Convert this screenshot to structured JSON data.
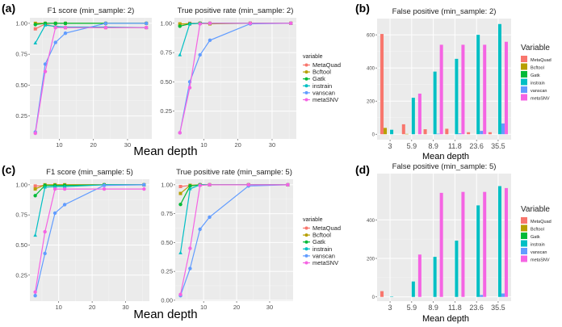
{
  "colors": {
    "MetaQuad": "#F8766D",
    "Bcftool": "#B79F00",
    "Gatk": "#00BA38",
    "instrain": "#00BFC4",
    "vanscan": "#619CFF",
    "metaSNV": "#F564E3"
  },
  "variables": [
    "MetaQuad",
    "Bcftool",
    "Gatk",
    "instrain",
    "vanscan",
    "metaSNV"
  ],
  "line_legend_title": "variable",
  "bar_legend_title": "Variable",
  "xlabel": "Mean depth",
  "panel_labels": [
    "(a)",
    "(b)",
    "(c)",
    "(d)"
  ],
  "chart_data": [
    {
      "type": "line",
      "title": "F1 score (min_sample: 2)",
      "x": [
        3,
        5.9,
        8.9,
        11.8,
        23.6,
        35.5
      ],
      "xlim": [
        1.4,
        37.1
      ],
      "xticks": [
        10,
        20,
        30
      ],
      "ylim": [
        0.065,
        1.045
      ],
      "yticks": [
        0.25,
        0.5,
        0.75,
        1.0
      ],
      "series": [
        {
          "name": "MetaQuad",
          "values": [
            0.955,
            0.995,
            0.97,
            0.965,
            0.965,
            0.965
          ]
        },
        {
          "name": "Bcftool",
          "values": [
            1.0,
            1.0,
            1.0,
            1.0,
            1.0,
            1.0
          ]
        },
        {
          "name": "Gatk",
          "values": [
            0.99,
            1.0,
            1.0,
            1.0,
            1.0,
            1.0
          ]
        },
        {
          "name": "instrain",
          "values": [
            0.84,
            0.985,
            0.975,
            0.97,
            0.97,
            0.965
          ]
        },
        {
          "name": "vanscan",
          "values": [
            0.12,
            0.67,
            0.845,
            0.92,
            1.0,
            1.0
          ]
        },
        {
          "name": "metaSNV",
          "values": [
            0.11,
            0.61,
            0.965,
            0.965,
            0.965,
            0.965
          ]
        }
      ]
    },
    {
      "type": "line",
      "title": "True positive rate (min_sample: 2)",
      "x": [
        3,
        5.9,
        8.9,
        11.8,
        23.6,
        35.5
      ],
      "xlim": [
        1.4,
        37.1
      ],
      "xticks": [
        10,
        20,
        30
      ],
      "ylim": [
        0.013,
        1.047
      ],
      "yticks": [
        0.25,
        0.5,
        0.75,
        1.0
      ],
      "series": [
        {
          "name": "MetaQuad",
          "values": [
            0.99,
            1.0,
            1.0,
            1.0,
            1.0,
            1.0
          ]
        },
        {
          "name": "Bcftool",
          "values": [
            0.995,
            0.995,
            1.0,
            0.995,
            1.0,
            1.0
          ]
        },
        {
          "name": "Gatk",
          "values": [
            0.975,
            0.995,
            1.0,
            1.0,
            1.0,
            1.0
          ]
        },
        {
          "name": "instrain",
          "values": [
            0.73,
            0.995,
            1.0,
            1.0,
            1.0,
            1.0
          ]
        },
        {
          "name": "vanscan",
          "values": [
            0.065,
            0.5,
            0.73,
            0.855,
            0.995,
            1.0
          ]
        },
        {
          "name": "metaSNV",
          "values": [
            0.065,
            0.45,
            0.995,
            1.0,
            1.0,
            1.0
          ]
        }
      ]
    },
    {
      "type": "line",
      "title": "F1 score (min_sample: 5)",
      "x": [
        3,
        5.9,
        8.9,
        11.8,
        23.6,
        35.5
      ],
      "xlim": [
        1.4,
        37.1
      ],
      "xticks": [
        10,
        20,
        30
      ],
      "ylim": [
        0.034,
        1.046
      ],
      "yticks": [
        0.25,
        0.5,
        0.75,
        1.0
      ],
      "series": [
        {
          "name": "MetaQuad",
          "values": [
            0.99,
            0.995,
            1.0,
            1.0,
            1.0,
            1.0
          ]
        },
        {
          "name": "Bcftool",
          "values": [
            0.965,
            1.0,
            1.0,
            1.0,
            1.0,
            1.0
          ]
        },
        {
          "name": "Gatk",
          "values": [
            0.91,
            0.995,
            0.995,
            0.995,
            1.0,
            1.0
          ]
        },
        {
          "name": "instrain",
          "values": [
            0.58,
            0.98,
            0.985,
            0.985,
            1.0,
            1.0
          ]
        },
        {
          "name": "vanscan",
          "values": [
            0.08,
            0.43,
            0.765,
            0.835,
            0.995,
            1.0
          ]
        },
        {
          "name": "metaSNV",
          "values": [
            0.11,
            0.61,
            0.965,
            0.965,
            0.965,
            0.965
          ]
        }
      ]
    },
    {
      "type": "line",
      "title": "True positive rate (min_sample: 5)",
      "x": [
        3,
        5.9,
        8.9,
        11.8,
        23.6,
        35.5
      ],
      "xlim": [
        1.4,
        37.1
      ],
      "xticks": [
        10,
        20,
        30
      ],
      "ylim": [
        -0.008,
        1.048
      ],
      "yticks": [
        0.0,
        0.25,
        0.5,
        0.75,
        1.0
      ],
      "series": [
        {
          "name": "MetaQuad",
          "values": [
            0.985,
            0.995,
            1.0,
            1.0,
            1.0,
            1.0
          ]
        },
        {
          "name": "Bcftool",
          "values": [
            0.925,
            0.995,
            1.0,
            1.0,
            1.0,
            1.0
          ]
        },
        {
          "name": "Gatk",
          "values": [
            0.83,
            0.99,
            1.0,
            1.0,
            1.0,
            1.0
          ]
        },
        {
          "name": "instrain",
          "values": [
            0.41,
            0.965,
            1.0,
            1.0,
            1.0,
            1.0
          ]
        },
        {
          "name": "vanscan",
          "values": [
            0.04,
            0.275,
            0.615,
            0.72,
            0.99,
            1.0
          ]
        },
        {
          "name": "metaSNV",
          "values": [
            0.05,
            0.45,
            0.995,
            1.0,
            1.0,
            1.0
          ]
        }
      ]
    },
    {
      "type": "bar",
      "title": "False positive (min_sample: 2)",
      "categories": [
        "3",
        "5.9",
        "8.9",
        "11.8",
        "23.6",
        "35.5"
      ],
      "ylim": [
        -33,
        698
      ],
      "yticks": [
        0,
        200,
        400,
        600
      ],
      "series": [
        {
          "name": "MetaQuad",
          "values": [
            605,
            60,
            30,
            33,
            12,
            12
          ]
        },
        {
          "name": "Bcftool",
          "values": [
            38,
            2,
            0,
            0,
            0,
            0
          ]
        },
        {
          "name": "Gatk",
          "values": [
            0,
            0,
            0,
            0,
            0,
            0
          ]
        },
        {
          "name": "instrain",
          "values": [
            27,
            220,
            378,
            455,
            600,
            665
          ]
        },
        {
          "name": "vanscan",
          "values": [
            0,
            0,
            3,
            5,
            20,
            65
          ]
        },
        {
          "name": "metaSNV",
          "values": [
            0,
            245,
            540,
            540,
            540,
            558
          ]
        }
      ]
    },
    {
      "type": "bar",
      "title": "False positive (min_sample: 5)",
      "categories": [
        "3",
        "5.9",
        "8.9",
        "11.8",
        "23.6",
        "35.5"
      ],
      "ylim": [
        -22,
        640
      ],
      "yticks": [
        0,
        200,
        400
      ],
      "series": [
        {
          "name": "MetaQuad",
          "values": [
            30,
            0,
            0,
            0,
            0,
            0
          ]
        },
        {
          "name": "Bcftool",
          "values": [
            0,
            0,
            0,
            0,
            0,
            0
          ]
        },
        {
          "name": "Gatk",
          "values": [
            0,
            0,
            0,
            0,
            0,
            0
          ]
        },
        {
          "name": "instrain",
          "values": [
            2,
            80,
            208,
            292,
            475,
            575
          ]
        },
        {
          "name": "vanscan",
          "values": [
            0,
            0,
            0,
            0,
            10,
            18
          ]
        },
        {
          "name": "metaSNV",
          "values": [
            0,
            220,
            540,
            545,
            545,
            565
          ]
        }
      ]
    }
  ]
}
